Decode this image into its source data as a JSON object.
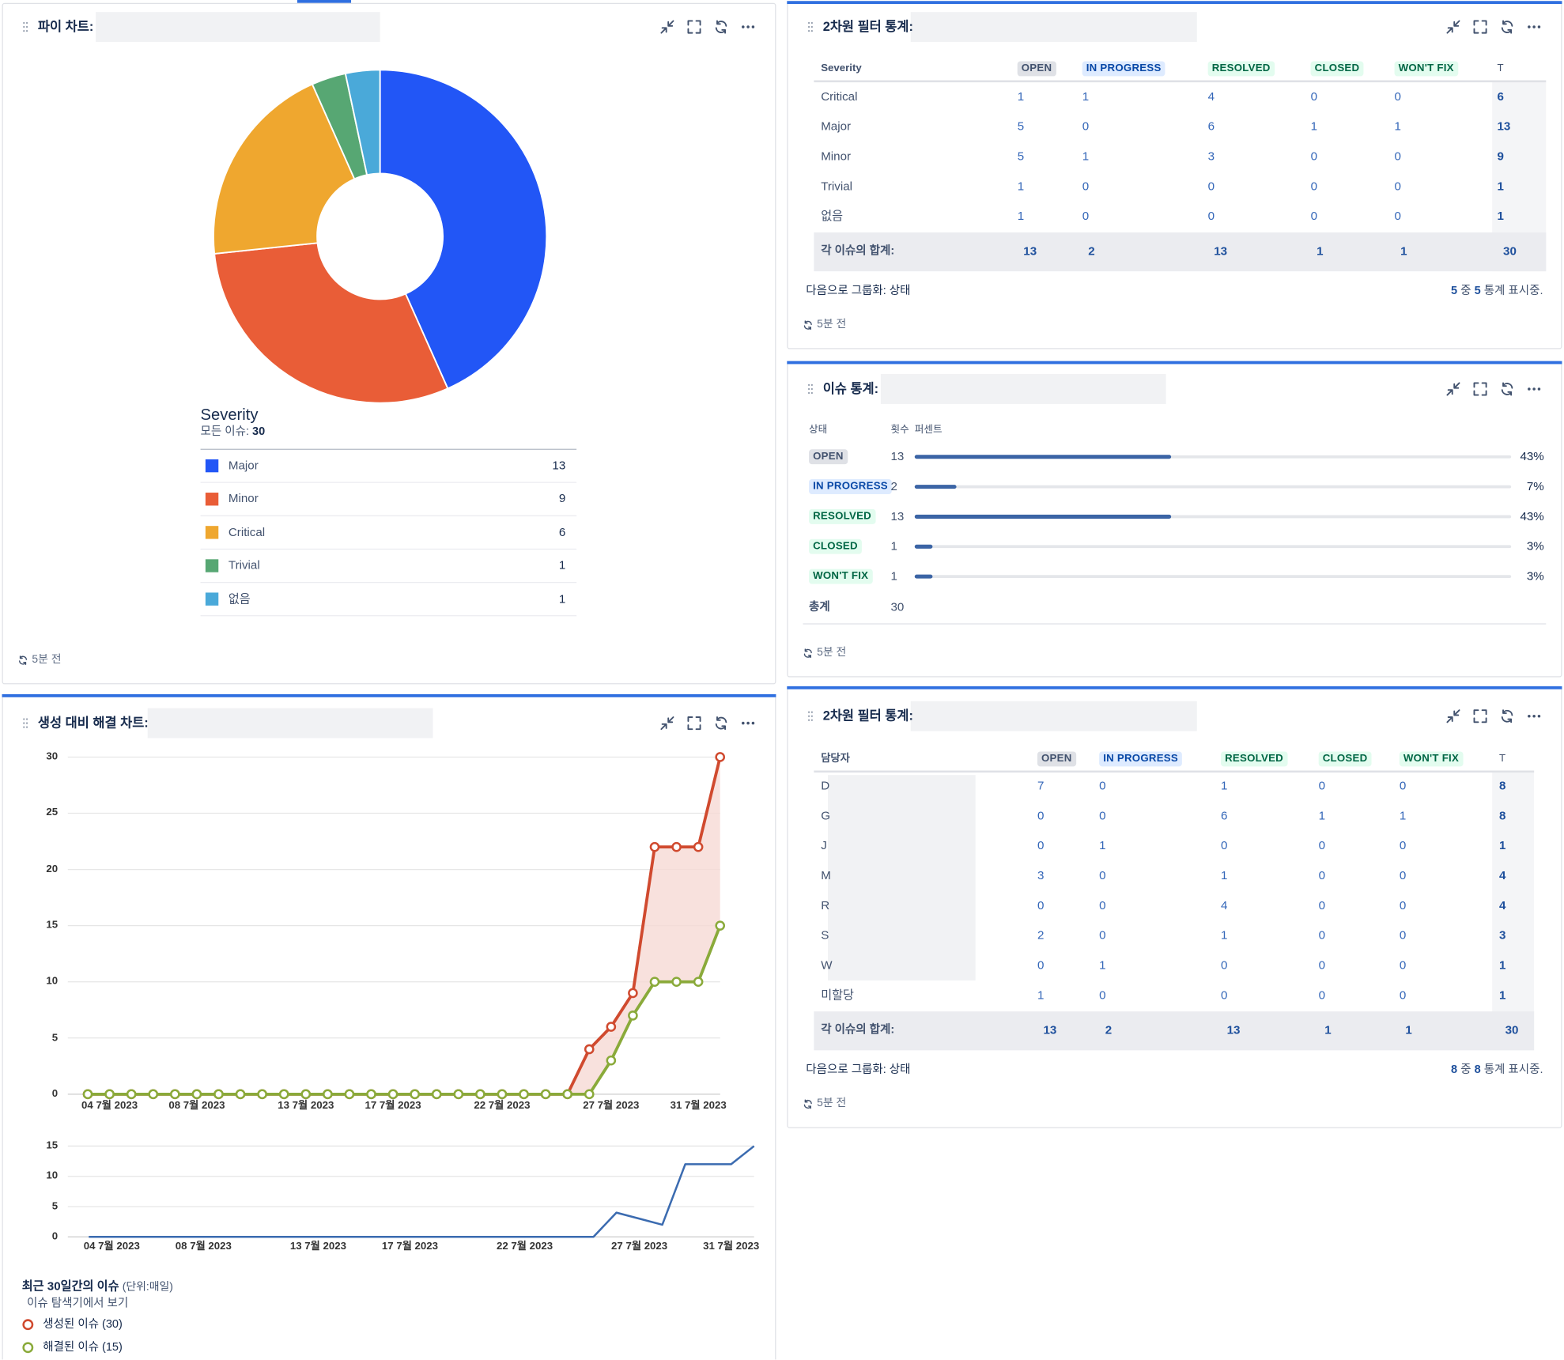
{
  "pie_gadget": {
    "title": "파이 차트:",
    "chart_data": {
      "type": "pie",
      "title": "Severity",
      "total_label": "모든 이슈:",
      "total": 30,
      "categories": [
        "Major",
        "Minor",
        "Critical",
        "Trivial",
        "없음"
      ],
      "values": [
        13,
        9,
        6,
        1,
        1
      ],
      "colors": [
        "#2256f6",
        "#e95d37",
        "#efa72f",
        "#57a773",
        "#4aa9d9"
      ],
      "donut": true
    },
    "updated": "5분 전"
  },
  "filter_stats_1": {
    "title": "2차원 필터 통계:",
    "table": {
      "columns": [
        "Severity",
        "OPEN",
        "IN PROGRESS",
        "RESOLVED",
        "CLOSED",
        "WON'T FIX",
        "T"
      ],
      "rows": [
        [
          "Critical",
          1,
          1,
          4,
          0,
          0,
          6
        ],
        [
          "Major",
          5,
          0,
          6,
          1,
          1,
          13
        ],
        [
          "Minor",
          5,
          1,
          3,
          0,
          0,
          9
        ],
        [
          "Trivial",
          1,
          0,
          0,
          0,
          0,
          1
        ],
        [
          "없음",
          1,
          0,
          0,
          0,
          0,
          1
        ]
      ],
      "totals": [
        "각 이슈의 합계:",
        13,
        2,
        13,
        1,
        1,
        30
      ]
    },
    "group_by": "다음으로 그룹화: 상태",
    "shown": [
      5,
      "중",
      5,
      "통계 표시중."
    ],
    "updated": "5분 전"
  },
  "issue_stats": {
    "title": "이슈 통계:",
    "columns": [
      "상태",
      "횟수",
      "퍼센트"
    ],
    "rows": [
      {
        "status": "OPEN",
        "count": 13,
        "percent": 43,
        "percent_label": "43%"
      },
      {
        "status": "IN PROGRESS",
        "count": 2,
        "percent": 7,
        "percent_label": "7%"
      },
      {
        "status": "RESOLVED",
        "count": 13,
        "percent": 43,
        "percent_label": "43%"
      },
      {
        "status": "CLOSED",
        "count": 1,
        "percent": 3,
        "percent_label": "3%"
      },
      {
        "status": "WON'T FIX",
        "count": 1,
        "percent": 3,
        "percent_label": "3%"
      }
    ],
    "total_label": "총계",
    "total": 30,
    "bar_color": "#3b64a5",
    "updated": "5분 전"
  },
  "created_vs_resolved": {
    "title": "생성 대비 해결 차트:",
    "chart_data": [
      {
        "type": "line",
        "categories": [
          null,
          "04 7월 2023",
          null,
          null,
          null,
          "08 7월 2023",
          null,
          null,
          null,
          null,
          "13 7월 2023",
          null,
          null,
          null,
          "17 7월 2023",
          null,
          null,
          null,
          null,
          "22 7월 2023",
          null,
          null,
          null,
          null,
          "27 7월 2023",
          null,
          null,
          null,
          "31 7월 2023",
          null
        ],
        "series": [
          {
            "name": "생성된 이슈 (30)",
            "color": "#d04a2f",
            "values": [
              0,
              0,
              0,
              0,
              0,
              0,
              0,
              0,
              0,
              0,
              0,
              0,
              0,
              0,
              0,
              0,
              0,
              0,
              0,
              0,
              0,
              0,
              0,
              4,
              6,
              9,
              22,
              22,
              22,
              30
            ]
          },
          {
            "name": "해결된 이슈 (15)",
            "color": "#8aaa3a",
            "values": [
              0,
              0,
              0,
              0,
              0,
              0,
              0,
              0,
              0,
              0,
              0,
              0,
              0,
              0,
              0,
              0,
              0,
              0,
              0,
              0,
              0,
              0,
              0,
              0,
              3,
              7,
              10,
              10,
              10,
              15
            ]
          }
        ],
        "ylim": [
          0,
          30
        ],
        "yticks": [
          0,
          5,
          10,
          15,
          20,
          25,
          30
        ],
        "grid": true,
        "markers": true,
        "fill_between": "#f6d9d4"
      },
      {
        "type": "line",
        "categories": [
          null,
          "04 7월 2023",
          null,
          null,
          null,
          "08 7월 2023",
          null,
          null,
          null,
          null,
          "13 7월 2023",
          null,
          null,
          null,
          "17 7월 2023",
          null,
          null,
          null,
          null,
          "22 7월 2023",
          null,
          null,
          null,
          null,
          "27 7월 2023",
          null,
          null,
          null,
          "31 7월 2023",
          null
        ],
        "series": [
          {
            "color": "#3b6bb0",
            "values": [
              0,
              0,
              0,
              0,
              0,
              0,
              0,
              0,
              0,
              0,
              0,
              0,
              0,
              0,
              0,
              0,
              0,
              0,
              0,
              0,
              0,
              0,
              0,
              4,
              3,
              2,
              12,
              12,
              12,
              15
            ]
          }
        ],
        "ylim": [
          0,
          15
        ],
        "yticks": [
          0,
          5,
          10,
          15
        ],
        "grid": true,
        "markers": false
      }
    ],
    "legend_title": "최근 30일간의 이슈",
    "legend_unit": "(단위:매일)",
    "link": "이슈 탐색기에서 보기"
  },
  "filter_stats_2": {
    "title": "2차원 필터 통계:",
    "table": {
      "columns": [
        "담당자",
        "OPEN",
        "IN PROGRESS",
        "RESOLVED",
        "CLOSED",
        "WON'T FIX",
        "T"
      ],
      "rows": [
        [
          "D",
          7,
          0,
          1,
          0,
          0,
          8
        ],
        [
          "G",
          0,
          0,
          6,
          1,
          1,
          8
        ],
        [
          "J",
          0,
          1,
          0,
          0,
          0,
          1
        ],
        [
          "M",
          3,
          0,
          1,
          0,
          0,
          4
        ],
        [
          "R",
          0,
          0,
          4,
          0,
          0,
          4
        ],
        [
          "S",
          2,
          0,
          1,
          0,
          0,
          3
        ],
        [
          "W",
          0,
          1,
          0,
          0,
          0,
          1
        ],
        [
          "미할당",
          1,
          0,
          0,
          0,
          0,
          1
        ]
      ],
      "totals": [
        "각 이슈의 합계:",
        13,
        2,
        13,
        1,
        1,
        30
      ]
    },
    "group_by": "다음으로 그룹화: 상태",
    "shown": [
      8,
      "중",
      8,
      "통계 표시중."
    ],
    "updated": "5분 전"
  }
}
